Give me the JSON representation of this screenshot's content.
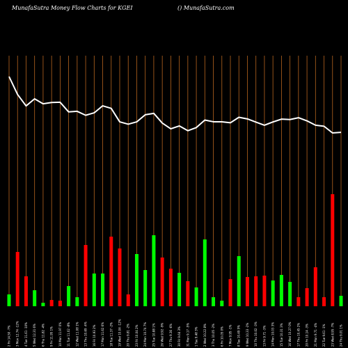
{
  "header": {
    "title": "MunafaSutra  Money Flow  Charts for KGEI",
    "site": "() MunafaSutra.com"
  },
  "colors": {
    "background": "#000000",
    "grid": "#b8651f",
    "up": "#00ff00",
    "down": "#ff0000",
    "line": "#ffffff",
    "text": "#ffffff"
  },
  "chart_data": {
    "type": "bar",
    "title": "MunafaSutra  Money Flow  Charts for KGEI",
    "x_tick_labels": [
      "2 Fri 14.50 -7%",
      "3 Mon 12.74 -12%",
      "4 Tue 11.61 -10%",
      "5 Wed 12.31 6%",
      "6 Thu 11.82 -4%",
      "9 Fri 11.95 1%",
      "10 Mon 11.97 0%",
      "11 Tue 11.02 -8%",
      "12 Wed 11.08 1%",
      "13 Thu 10.69 -4%",
      "16 Fri 10.93 2%",
      "17 Mon 11.62 6%",
      "18 Tue 11.37 -2%",
      "19 Wed 10.04 -12%",
      "20 Thu 9.81 -2%",
      "23 Fri 10.04 2%",
      "24 Mon 10.74 7%",
      "25 Tue 10.88 1%",
      "26 Wed 9.92 -9%",
      "27 Thu 9.36 -6%",
      "30 Fri 9.64 3%",
      "31 Mon 9.17 -5%",
      "1 Tue 9.48 3%",
      "2 Wed 10.22 8%",
      "3 Thu 10.05 -2%",
      "6 Fri 10.05 0%",
      "7 Mon 9.95 -1%",
      "8 Tue 10.49 5%",
      "9 Wed 10.33 -2%",
      "10 Thu 10.02 -3%",
      "13 Fri 9.71 -3%",
      "14 Mon 10.03 3%",
      "15 Tue 10.31 3%",
      "16 Wed 10.27 0%",
      "17 Thu 10.45 2%",
      "20 Fri 10.14 -3%",
      "21 Mon 9.71 -4%",
      "22 Tue 9.61 -1%",
      "23 Wed 8.95 -7%",
      "24 Thu 9.01 1%"
    ],
    "price_line": [
      14.5,
      12.74,
      11.61,
      12.31,
      11.82,
      11.95,
      11.97,
      11.02,
      11.08,
      10.69,
      10.93,
      11.62,
      11.37,
      10.04,
      9.81,
      10.04,
      10.74,
      10.88,
      9.92,
      9.36,
      9.64,
      9.17,
      9.48,
      10.22,
      10.05,
      10.05,
      9.95,
      10.49,
      10.33,
      10.02,
      9.71,
      10.03,
      10.31,
      10.27,
      10.45,
      10.14,
      9.71,
      9.61,
      8.95,
      9.01
    ],
    "money_flow_bars": [
      {
        "value": 17,
        "direction": "up"
      },
      {
        "value": 78,
        "direction": "down"
      },
      {
        "value": 43,
        "direction": "down"
      },
      {
        "value": 23,
        "direction": "up"
      },
      {
        "value": 5,
        "direction": "up"
      },
      {
        "value": 9,
        "direction": "down"
      },
      {
        "value": 8,
        "direction": "down"
      },
      {
        "value": 29,
        "direction": "up"
      },
      {
        "value": 13,
        "direction": "up"
      },
      {
        "value": 88,
        "direction": "down"
      },
      {
        "value": 47,
        "direction": "up"
      },
      {
        "value": 47,
        "direction": "up"
      },
      {
        "value": 100,
        "direction": "down"
      },
      {
        "value": 83,
        "direction": "down"
      },
      {
        "value": 17,
        "direction": "down"
      },
      {
        "value": 75,
        "direction": "up"
      },
      {
        "value": 52,
        "direction": "up"
      },
      {
        "value": 102,
        "direction": "up"
      },
      {
        "value": 70,
        "direction": "down"
      },
      {
        "value": 54,
        "direction": "down"
      },
      {
        "value": 48,
        "direction": "up"
      },
      {
        "value": 36,
        "direction": "down"
      },
      {
        "value": 27,
        "direction": "up"
      },
      {
        "value": 96,
        "direction": "up"
      },
      {
        "value": 13,
        "direction": "up"
      },
      {
        "value": 8,
        "direction": "up"
      },
      {
        "value": 39,
        "direction": "down"
      },
      {
        "value": 72,
        "direction": "up"
      },
      {
        "value": 42,
        "direction": "down"
      },
      {
        "value": 43,
        "direction": "down"
      },
      {
        "value": 44,
        "direction": "down"
      },
      {
        "value": 37,
        "direction": "up"
      },
      {
        "value": 45,
        "direction": "up"
      },
      {
        "value": 35,
        "direction": "up"
      },
      {
        "value": 13,
        "direction": "down"
      },
      {
        "value": 26,
        "direction": "down"
      },
      {
        "value": 56,
        "direction": "down"
      },
      {
        "value": 13,
        "direction": "down"
      },
      {
        "value": 161,
        "direction": "down"
      },
      {
        "value": 15,
        "direction": "up"
      }
    ],
    "grid": true,
    "legend": "none"
  }
}
